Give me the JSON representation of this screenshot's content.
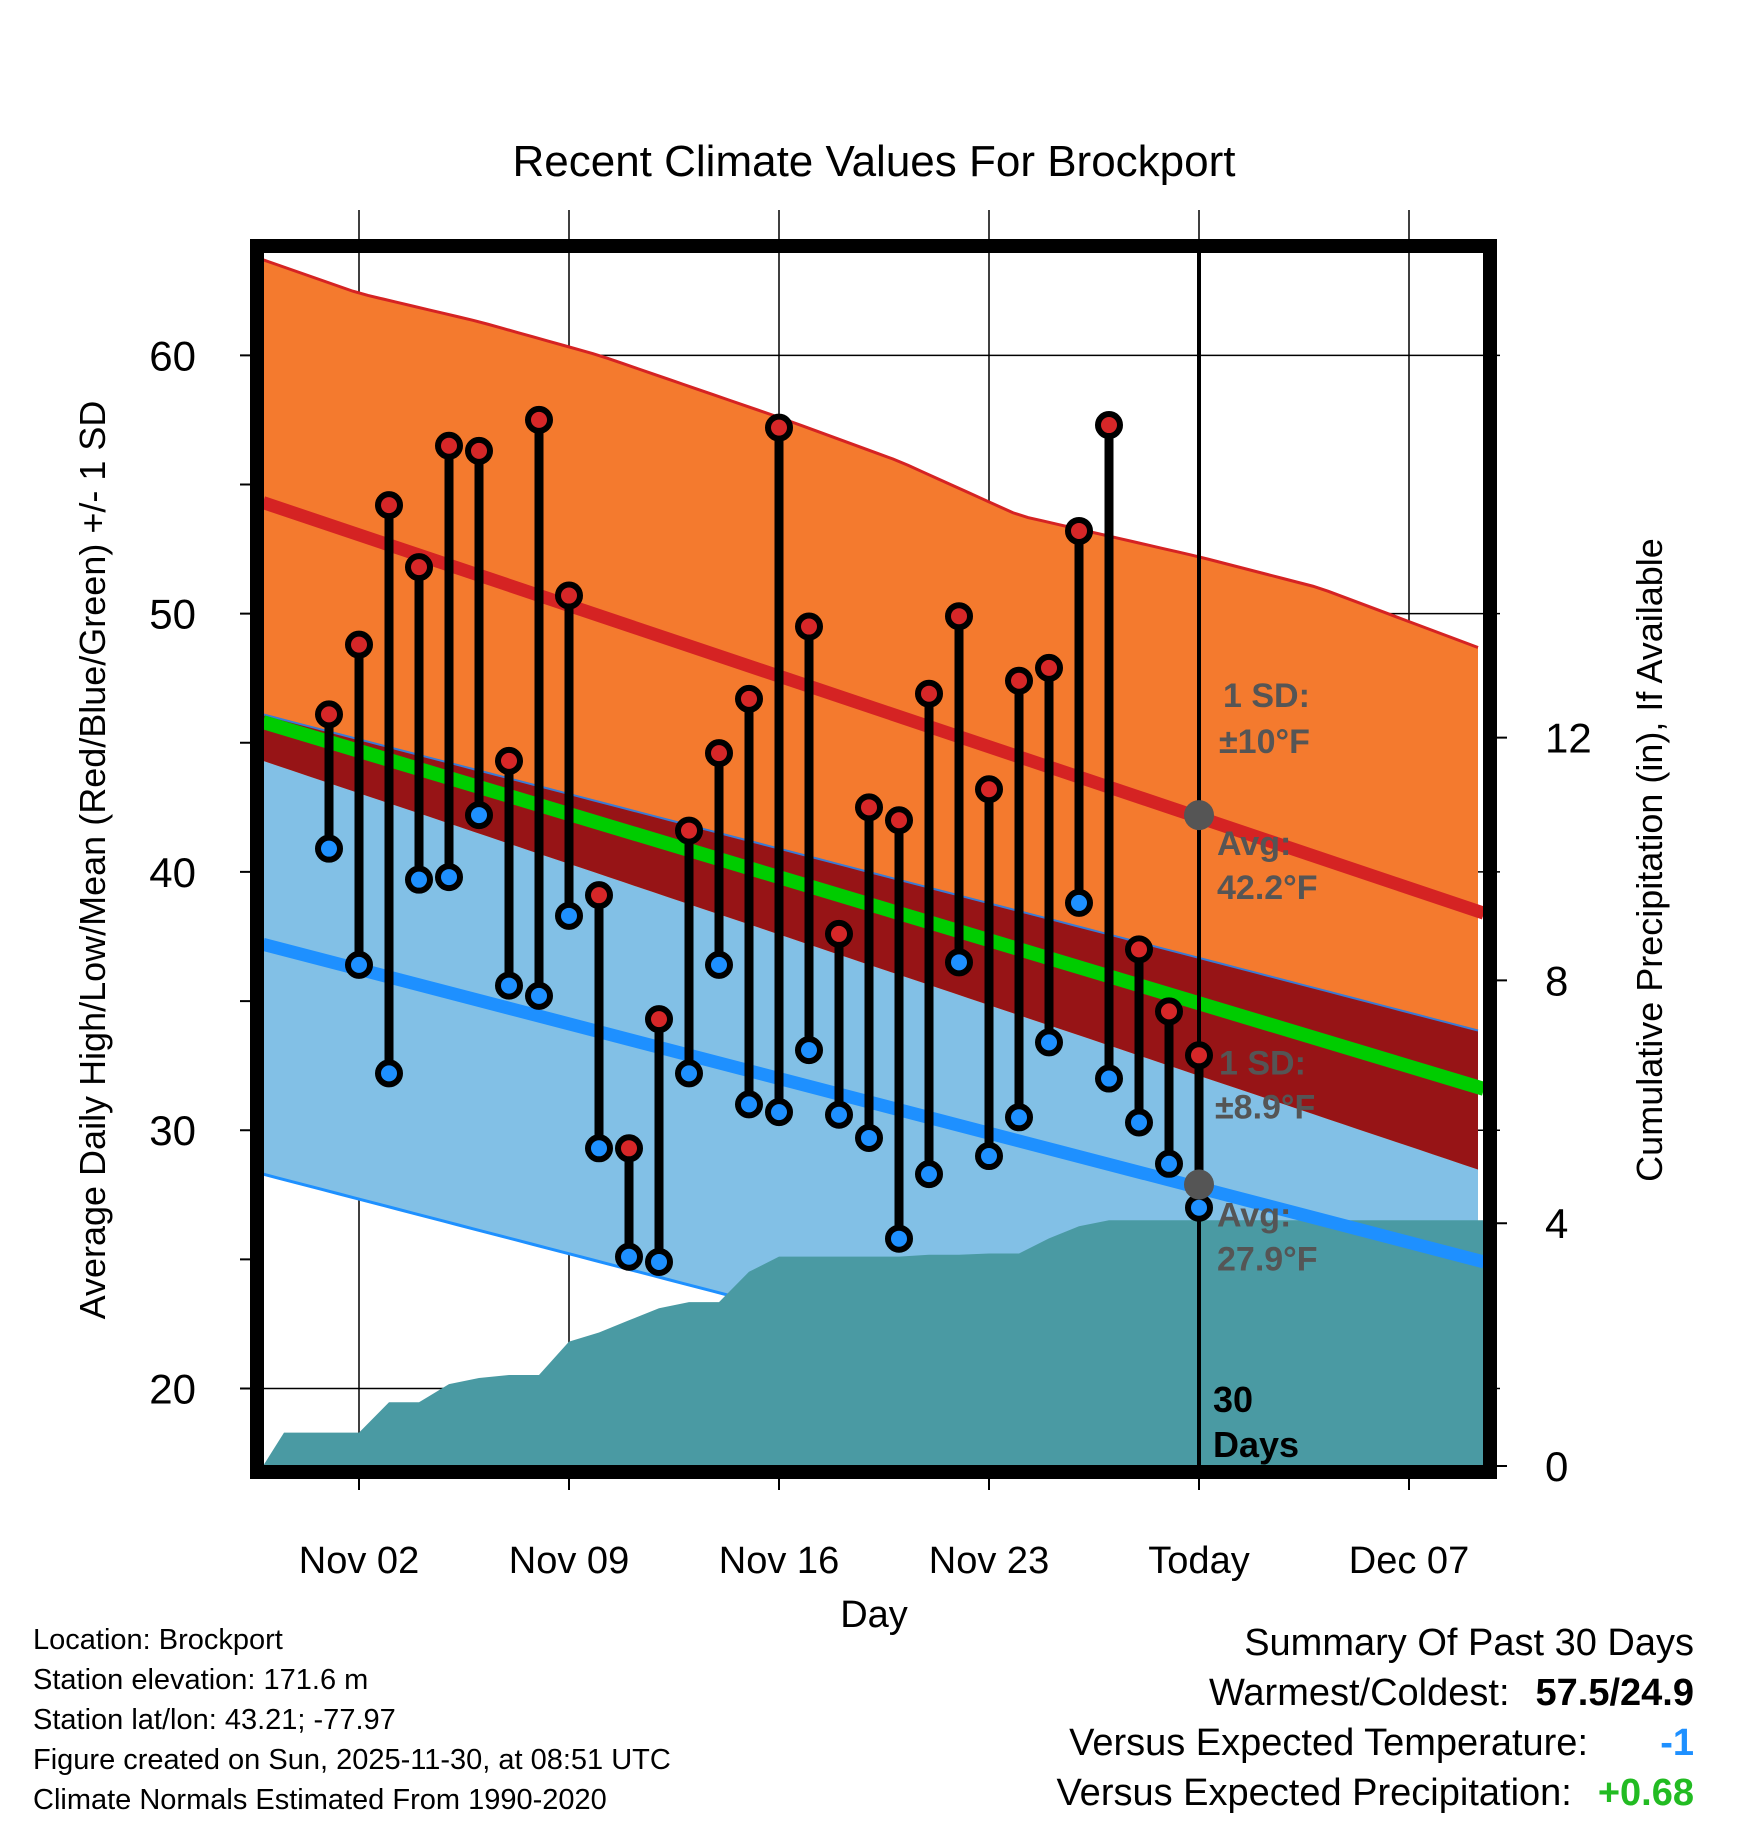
{
  "chart_data": {
    "type": "line",
    "title": "Recent Climate Values For Brockport",
    "xlabel": "Day",
    "ylabel_left": "Average Daily High/Low/Mean (Red/Blue/Green) +/- 1 SD",
    "ylabel_right": "Cumulative Precipitation (in), If Available",
    "ylim": [
      17,
      64
    ],
    "y2lim": [
      0,
      20
    ],
    "xlim": [
      -1.2,
      39.5
    ],
    "left_ticks": [
      20,
      30,
      40,
      50,
      60
    ],
    "right_ticks": [
      0,
      4,
      8,
      12
    ],
    "x_ticks": [
      {
        "day": 2,
        "label": "Nov 02"
      },
      {
        "day": 9,
        "label": "Nov 09"
      },
      {
        "day": 16,
        "label": "Nov 16"
      },
      {
        "day": 23,
        "label": "Nov 23"
      },
      {
        "day": 30,
        "label": "Today"
      },
      {
        "day": 37,
        "label": "Dec 07"
      }
    ],
    "today_day": 30,
    "days_label": "30 Days",
    "normal_high": {
      "start": 54.3,
      "end": 38.4,
      "today": 42.2,
      "sd": 10
    },
    "normal_low": {
      "start": 37.2,
      "end": 24.9,
      "today": 27.9,
      "sd": 8.9
    },
    "normal_mean": {
      "start": 45.8,
      "end": 31.6
    },
    "normal_high_upper_curve": [
      [
        -1.2,
        63.7
      ],
      [
        2,
        62.4
      ],
      [
        6,
        61.3
      ],
      [
        10,
        60.0
      ],
      [
        16,
        57.6
      ],
      [
        20,
        55.9
      ],
      [
        24,
        53.8
      ],
      [
        30,
        52.2
      ],
      [
        34,
        51.0
      ],
      [
        39.5,
        48.6
      ]
    ],
    "high_label": {
      "sd": "1 SD:",
      "sd_value": "±10°F",
      "avg": "Avg:",
      "avg_value": "42.2°F"
    },
    "low_label": {
      "sd": "1 SD:",
      "sd_value": "±8.9°F",
      "avg": "Avg:",
      "avg_value": "27.9°F"
    },
    "series": [
      {
        "name": "Daily High",
        "color": "#d62728",
        "values": [
          46.1,
          48.8,
          54.2,
          51.8,
          56.5,
          56.3,
          44.3,
          57.5,
          50.7,
          39.1,
          29.3,
          34.3,
          41.6,
          44.6,
          46.7,
          57.2,
          49.5,
          37.6,
          42.5,
          42.0,
          46.9,
          49.9,
          43.2,
          47.4,
          47.9,
          53.2,
          57.3,
          37.0,
          34.6,
          32.9
        ]
      },
      {
        "name": "Daily Low",
        "color": "#1e90ff",
        "values": [
          40.9,
          36.4,
          32.2,
          39.7,
          39.8,
          42.2,
          35.6,
          35.2,
          38.3,
          29.3,
          25.1,
          24.9,
          32.2,
          36.4,
          31.0,
          30.7,
          33.1,
          30.6,
          29.7,
          25.8,
          28.3,
          36.5,
          29.0,
          30.5,
          33.4,
          38.8,
          32.0,
          30.3,
          28.7,
          27.0
        ]
      }
    ],
    "days": [
      1,
      2,
      3,
      4,
      5,
      6,
      7,
      8,
      9,
      10,
      11,
      12,
      13,
      14,
      15,
      16,
      17,
      18,
      19,
      20,
      21,
      22,
      23,
      24,
      25,
      26,
      27,
      28,
      29,
      30
    ],
    "cumulative_precip": [
      [
        -1.2,
        0.0
      ],
      [
        -0.5,
        0.55
      ],
      [
        1.0,
        0.55
      ],
      [
        2.0,
        0.55
      ],
      [
        3.0,
        1.05
      ],
      [
        4.0,
        1.05
      ],
      [
        5.0,
        1.35
      ],
      [
        6.0,
        1.45
      ],
      [
        7.0,
        1.5
      ],
      [
        8.0,
        1.5
      ],
      [
        9.0,
        2.05
      ],
      [
        10.0,
        2.2
      ],
      [
        11.0,
        2.4
      ],
      [
        12.0,
        2.6
      ],
      [
        13.0,
        2.7
      ],
      [
        14.0,
        2.7
      ],
      [
        15.0,
        3.2
      ],
      [
        16.0,
        3.45
      ],
      [
        17.0,
        3.45
      ],
      [
        18.0,
        3.45
      ],
      [
        19.0,
        3.45
      ],
      [
        20.0,
        3.45
      ],
      [
        21.0,
        3.48
      ],
      [
        22.0,
        3.48
      ],
      [
        23.0,
        3.5
      ],
      [
        24.0,
        3.5
      ],
      [
        25.0,
        3.75
      ],
      [
        26.0,
        3.95
      ],
      [
        27.0,
        4.05
      ],
      [
        28.0,
        4.05
      ],
      [
        30.0,
        4.05
      ],
      [
        39.5,
        4.05
      ]
    ],
    "colors": {
      "high_band": "#f47a2e",
      "low_band": "#82c0e6",
      "overlap_band": "#971416",
      "normal_high_line": "#d52323",
      "normal_low_line": "#1e90ff",
      "normal_mean_line": "#00cc00",
      "precip_fill": "#4a9aa3",
      "annotation_text": "#555555"
    }
  },
  "info": {
    "location": "Location: Brockport",
    "elevation": "Station elevation: 171.6 m",
    "latlon": "Station lat/lon: 43.21; -77.97",
    "created": "Figure created on Sun, 2025-11-30, at 08:51 UTC",
    "normals": "Climate Normals Estimated From 1990-2020"
  },
  "summary": {
    "title": "Summary Of Past 30 Days",
    "warmest_label": "Warmest/Coldest:",
    "warmest_value": "57.5/24.9",
    "temp_label": "Versus Expected Temperature:",
    "temp_value": "-1",
    "temp_color": "#1e90ff",
    "precip_label": "Versus Expected Precipitation:",
    "precip_value": "+0.68",
    "precip_color": "#22bb22"
  }
}
